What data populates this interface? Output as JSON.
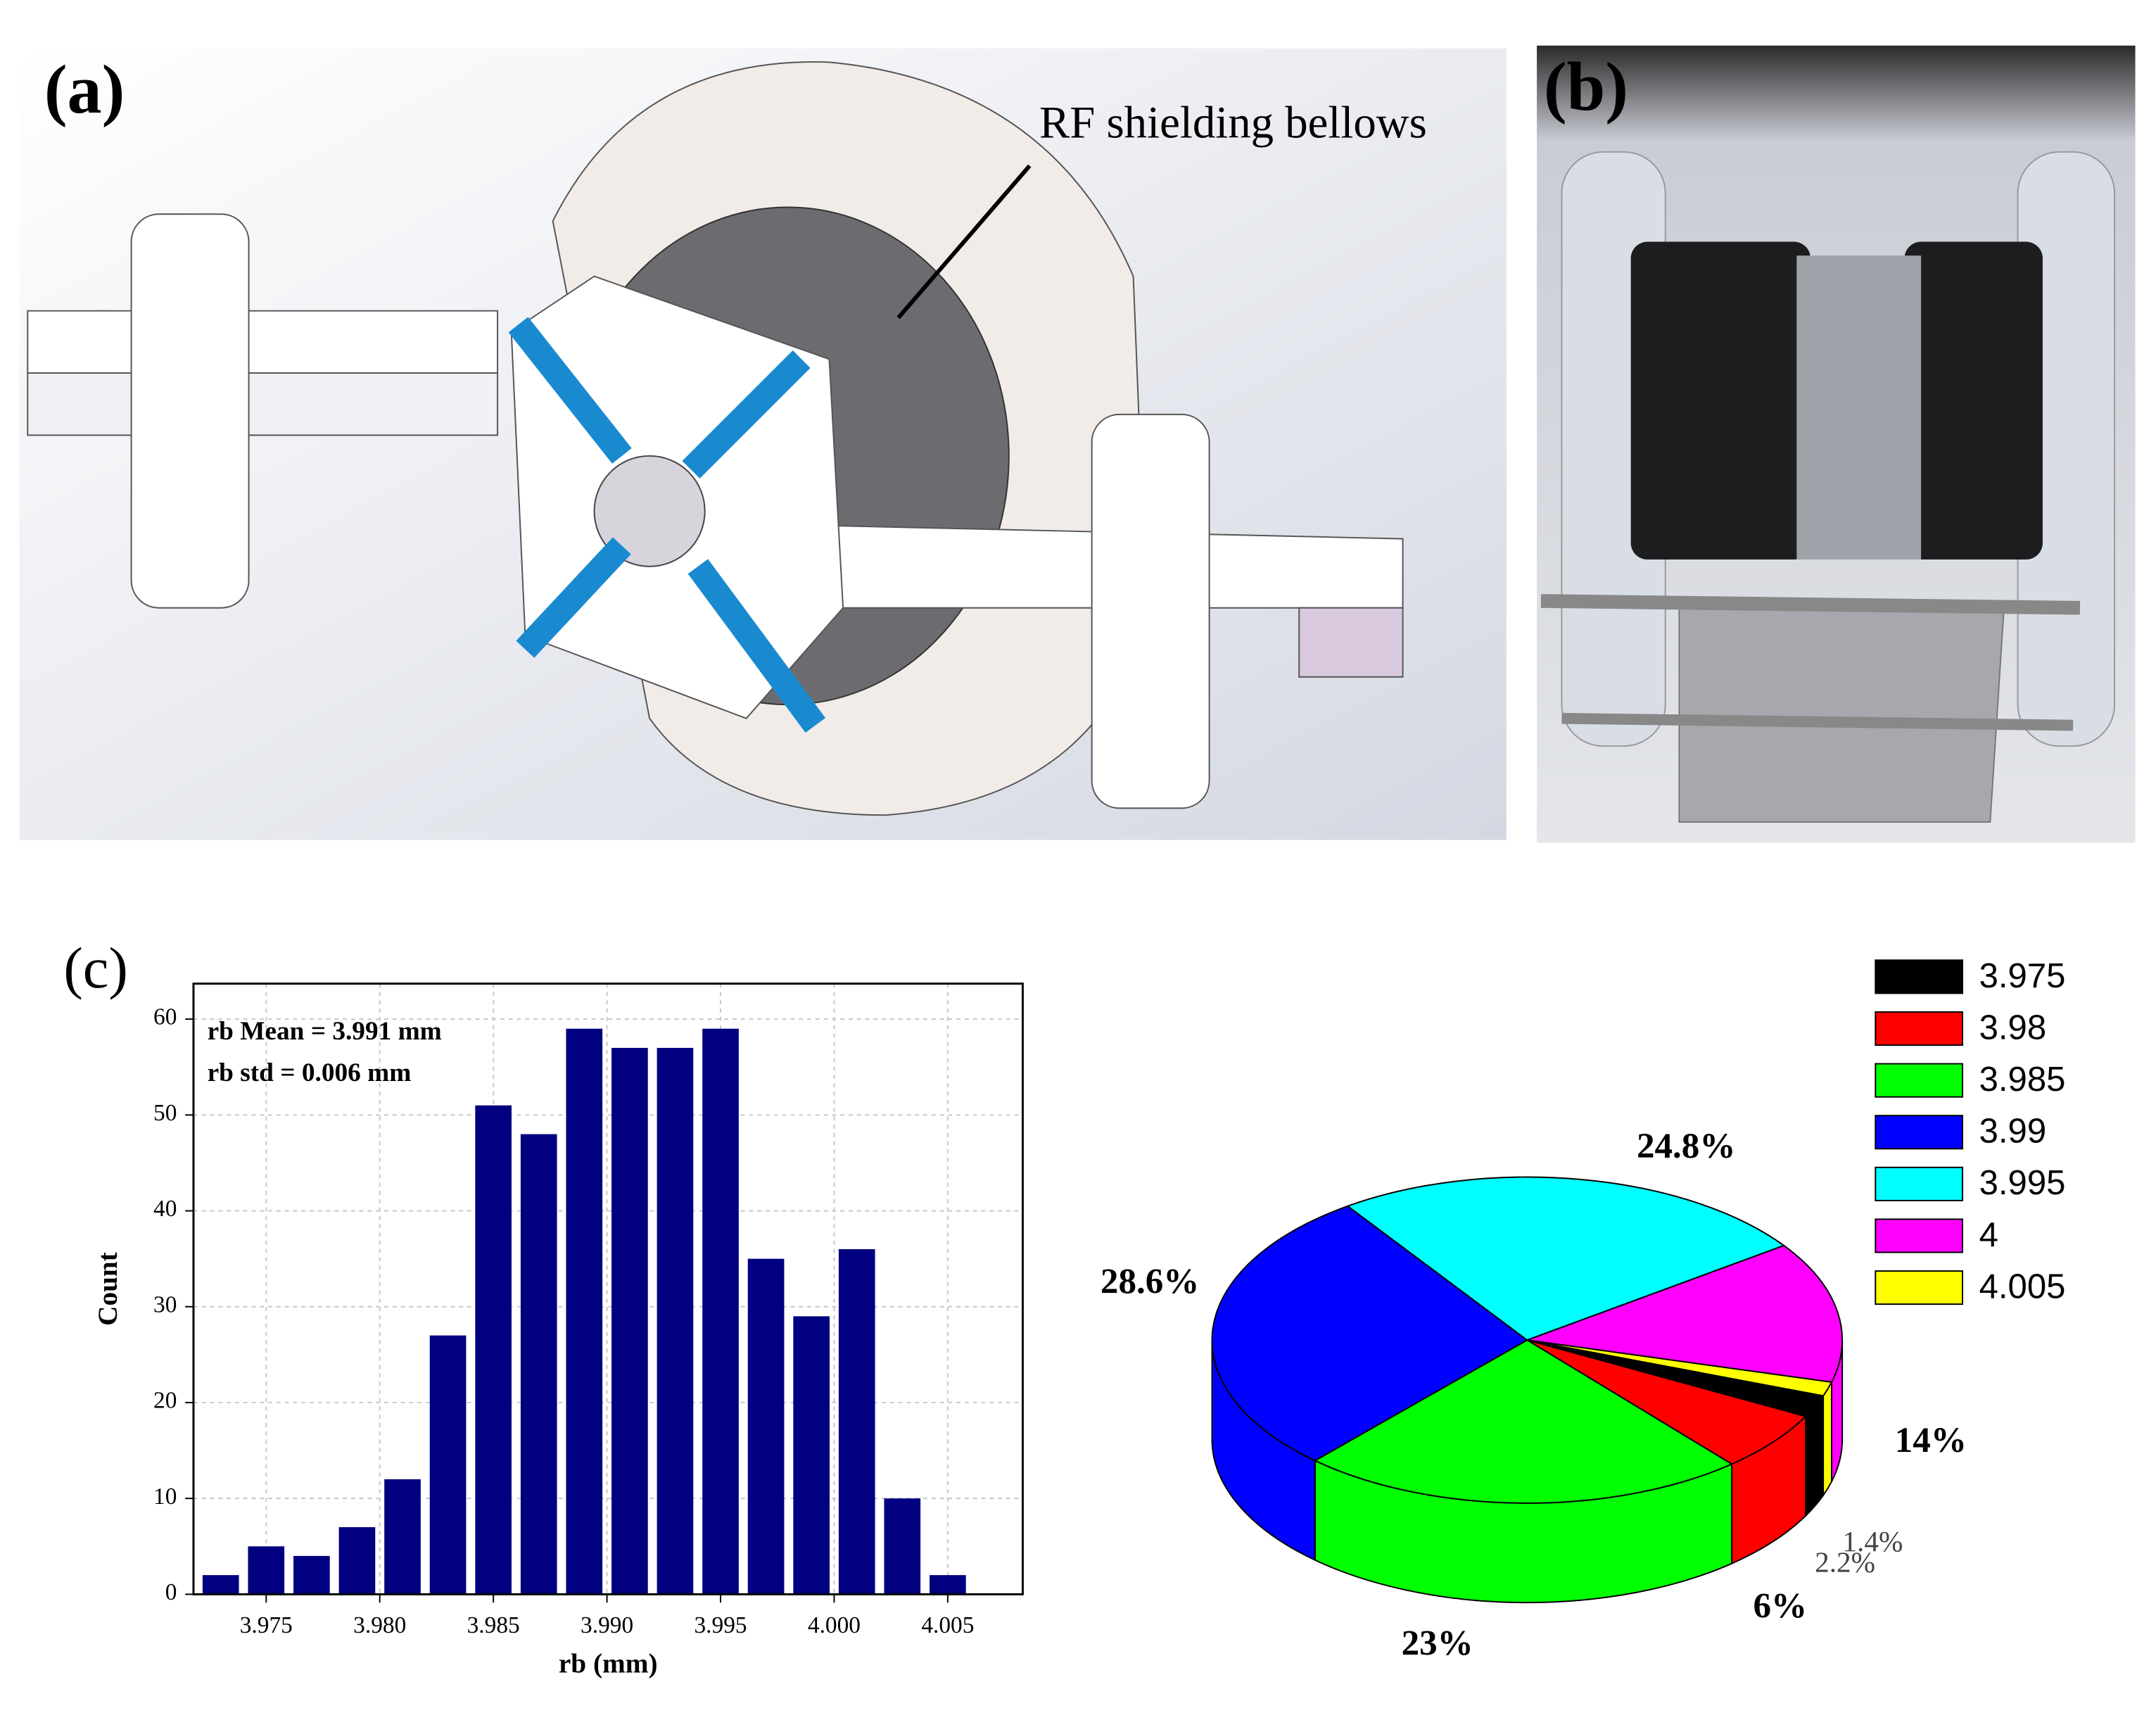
{
  "figure": {
    "panels": [
      {
        "label": "(a)",
        "annotation": "RF shielding bellows"
      },
      {
        "label": "(b)"
      },
      {
        "label": "(c)"
      }
    ]
  },
  "chart_data": [
    {
      "type": "histogram",
      "xlabel": "rb (mm)",
      "ylabel": "Count",
      "annotations": [
        "rb Mean = 3.991 mm",
        "rb std = 0.006 mm"
      ],
      "bins": [
        3.972,
        3.974,
        3.976,
        3.978,
        3.98,
        3.982,
        3.984,
        3.986,
        3.988,
        3.99,
        3.992,
        3.994,
        3.996,
        3.998,
        4.0,
        4.002,
        4.004,
        4.006
      ],
      "values": [
        2,
        5,
        4,
        7,
        12,
        27,
        51,
        48,
        59,
        57,
        57,
        59,
        35,
        29,
        36,
        10,
        2
      ],
      "color": "#000080",
      "xlim": [
        3.9718,
        4.0083
      ],
      "ylim": [
        0,
        63.7
      ],
      "xticks": [
        3.975,
        {
          "value": 3.98,
          "label": "3.980"
        },
        3.985,
        {
          "value": 3.99,
          "label": "3.990"
        },
        3.995,
        {
          "value": 4,
          "label": "4.000"
        },
        4.005
      ],
      "yticks": [
        0,
        10,
        20,
        30,
        40,
        50,
        60
      ],
      "grid": true
    },
    {
      "type": "pie",
      "legend": "top-right",
      "categories": [
        "3.975",
        "3.98",
        "3.985",
        "3.99",
        "3.995",
        "4",
        "4.005"
      ],
      "values": [
        2.2,
        6,
        23,
        28.6,
        24.8,
        14,
        1.4
      ],
      "value_labels": [
        "2.2%",
        "6%",
        "23%",
        "28.6%",
        "24.8%",
        "14%",
        "1.4%"
      ],
      "colors": [
        "#000000",
        "#ff0000",
        "#00ff00",
        "#0000ff",
        "#00ffff",
        "#ff00ff",
        "#ffff00"
      ]
    }
  ]
}
